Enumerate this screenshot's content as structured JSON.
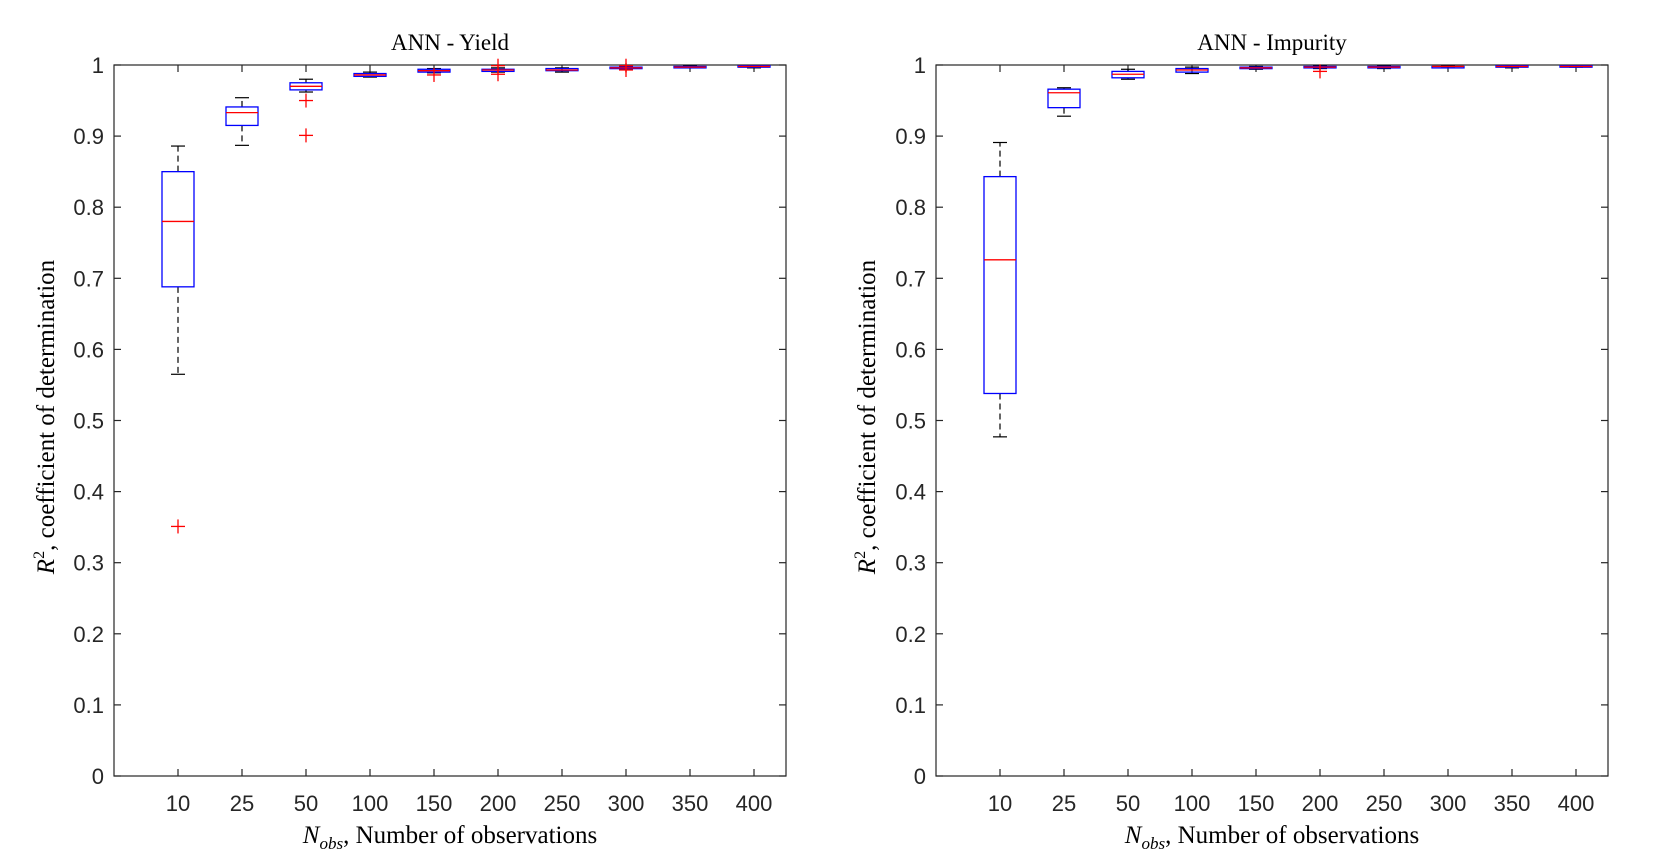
{
  "chart_data": [
    {
      "type": "box",
      "title": "ANN - Yield",
      "xlabel": {
        "symbol": "N",
        "subscript": "obs",
        "text": ", Number of observations"
      },
      "ylabel": {
        "symbol": "R",
        "superscript": "2",
        "text": ", coefficient of determination"
      },
      "ylim": [
        0,
        1
      ],
      "yticks": [
        "0",
        "0.1",
        "0.2",
        "0.3",
        "0.4",
        "0.5",
        "0.6",
        "0.7",
        "0.8",
        "0.9",
        "1"
      ],
      "categories": [
        "10",
        "25",
        "50",
        "100",
        "150",
        "200",
        "250",
        "300",
        "350",
        "400"
      ],
      "boxes": [
        {
          "min": 0.565,
          "q1": 0.688,
          "median": 0.78,
          "q3": 0.85,
          "max": 0.886,
          "outliers": [
            0.351
          ]
        },
        {
          "min": 0.887,
          "q1": 0.915,
          "median": 0.933,
          "q3": 0.941,
          "max": 0.954,
          "outliers": []
        },
        {
          "min": 0.962,
          "q1": 0.965,
          "median": 0.97,
          "q3": 0.975,
          "max": 0.98,
          "outliers": [
            0.95,
            0.901
          ]
        },
        {
          "min": 0.983,
          "q1": 0.984,
          "median": 0.986,
          "q3": 0.988,
          "max": 0.99,
          "outliers": []
        },
        {
          "min": 0.989,
          "q1": 0.99,
          "median": 0.992,
          "q3": 0.994,
          "max": 0.995,
          "outliers": [
            0.986
          ]
        },
        {
          "min": 0.99,
          "q1": 0.991,
          "median": 0.993,
          "q3": 0.994,
          "max": 0.996,
          "outliers": [
            0.987,
            0.999
          ]
        },
        {
          "min": 0.99,
          "q1": 0.992,
          "median": 0.993,
          "q3": 0.995,
          "max": 0.996,
          "outliers": []
        },
        {
          "min": 0.994,
          "q1": 0.995,
          "median": 0.996,
          "q3": 0.997,
          "max": 0.998,
          "outliers": [
            0.993,
            0.999
          ]
        },
        {
          "min": 0.996,
          "q1": 0.997,
          "median": 0.997,
          "q3": 0.998,
          "max": 0.999,
          "outliers": []
        },
        {
          "min": 0.996,
          "q1": 0.997,
          "median": 0.998,
          "q3": 0.999,
          "max": 0.999,
          "outliers": []
        }
      ]
    },
    {
      "type": "box",
      "title": "ANN - Impurity",
      "xlabel": {
        "symbol": "N",
        "subscript": "obs",
        "text": ", Number of observations"
      },
      "ylabel": {
        "symbol": "R",
        "superscript": "2",
        "text": ", coefficient of determination"
      },
      "ylim": [
        0,
        1
      ],
      "yticks": [
        "0",
        "0.1",
        "0.2",
        "0.3",
        "0.4",
        "0.5",
        "0.6",
        "0.7",
        "0.8",
        "0.9",
        "1"
      ],
      "categories": [
        "10",
        "25",
        "50",
        "100",
        "150",
        "200",
        "250",
        "300",
        "350",
        "400"
      ],
      "boxes": [
        {
          "min": 0.477,
          "q1": 0.538,
          "median": 0.726,
          "q3": 0.843,
          "max": 0.891,
          "outliers": []
        },
        {
          "min": 0.928,
          "q1": 0.94,
          "median": 0.961,
          "q3": 0.966,
          "max": 0.968,
          "outliers": []
        },
        {
          "min": 0.98,
          "q1": 0.982,
          "median": 0.987,
          "q3": 0.991,
          "max": 0.994,
          "outliers": []
        },
        {
          "min": 0.988,
          "q1": 0.99,
          "median": 0.993,
          "q3": 0.995,
          "max": 0.997,
          "outliers": []
        },
        {
          "min": 0.994,
          "q1": 0.995,
          "median": 0.996,
          "q3": 0.997,
          "max": 0.998,
          "outliers": []
        },
        {
          "min": 0.995,
          "q1": 0.996,
          "median": 0.997,
          "q3": 0.998,
          "max": 0.999,
          "outliers": [
            0.991
          ]
        },
        {
          "min": 0.995,
          "q1": 0.996,
          "median": 0.997,
          "q3": 0.998,
          "max": 0.999,
          "outliers": []
        },
        {
          "min": 0.996,
          "q1": 0.997,
          "median": 0.998,
          "q3": 0.998,
          "max": 0.999,
          "outliers": []
        },
        {
          "min": 0.996,
          "q1": 0.997,
          "median": 0.998,
          "q3": 0.999,
          "max": 0.999,
          "outliers": []
        },
        {
          "min": 0.997,
          "q1": 0.998,
          "median": 0.998,
          "q3": 0.999,
          "max": 0.999,
          "outliers": []
        }
      ]
    }
  ],
  "colors": {
    "box": "#0000ff",
    "median": "#ff0000",
    "outlier": "#ff0000",
    "whisker": "#000000",
    "axis": "#262626"
  }
}
